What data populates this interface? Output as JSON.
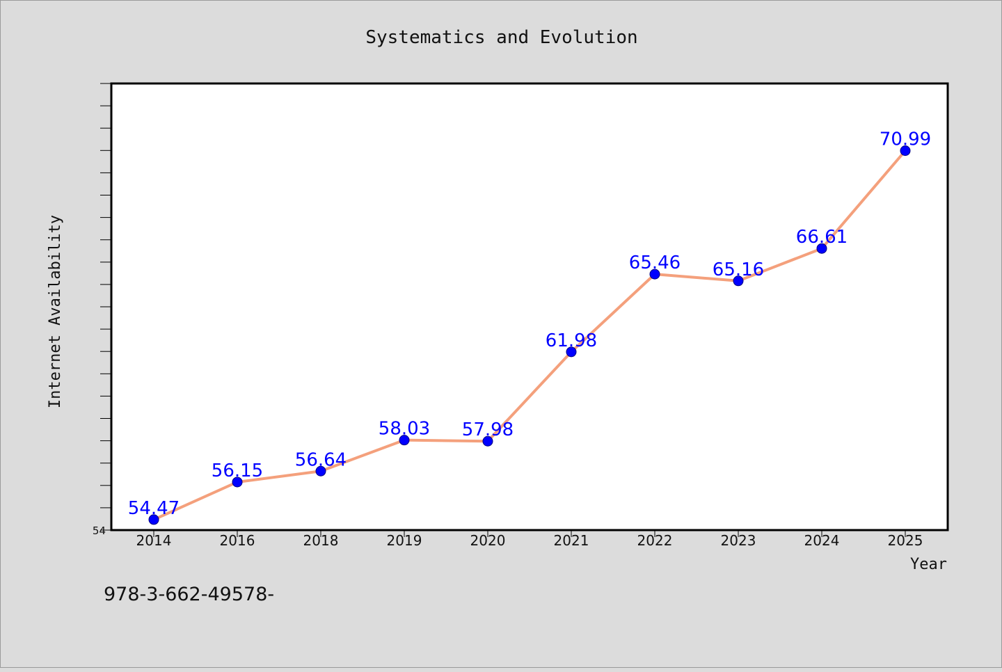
{
  "colors": {
    "background": "#dcdcdc",
    "plot_background": "#ffffff",
    "line": "#f4a07c",
    "marker": "#0000ff",
    "data_label": "#0000ff"
  },
  "chart_data": {
    "type": "line",
    "title": "Systematics and Evolution",
    "xlabel": "Year",
    "ylabel": "Internet Availability",
    "categories": [
      "2014",
      "2016",
      "2018",
      "2019",
      "2020",
      "2021",
      "2022",
      "2023",
      "2024",
      "2025"
    ],
    "series": [
      {
        "values": [
          54.47,
          56.15,
          56.64,
          58.03,
          57.98,
          61.98,
          65.46,
          65.16,
          66.61,
          70.99
        ]
      }
    ],
    "data_labels": [
      "54.47",
      "56.15",
      "56.64",
      "58.03",
      "57.98",
      "61.98",
      "65.46",
      "65.16",
      "66.61",
      "70.99"
    ],
    "ylim": [
      54,
      74
    ],
    "y_minor_tick_step": 1,
    "y_tick_labels": [
      "54"
    ],
    "grid": false,
    "legend": "none"
  },
  "annotation": {
    "text": "978-3-662-49578-"
  }
}
